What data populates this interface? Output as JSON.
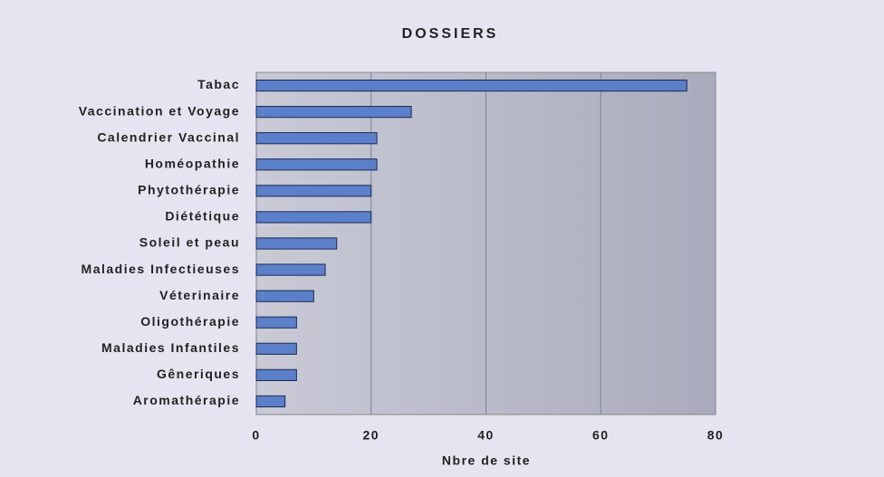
{
  "chart_data": {
    "type": "bar",
    "orientation": "horizontal",
    "title": "DOSSIERS",
    "x_label": "Nbre de site",
    "categories": [
      "Tabac",
      "Vaccination et Voyage",
      "Calendrier Vaccinal",
      "Homéopathie",
      "Phytothérapie",
      "Diététique",
      "Soleil et peau",
      "Maladies Infectieuses",
      "Véterinaire",
      "Oligothérapie",
      "Maladies Infantiles",
      "Gêneriques",
      "Aromathérapie"
    ],
    "values": [
      75,
      27,
      21,
      21,
      20,
      20,
      14,
      12,
      10,
      7,
      7,
      7,
      5
    ],
    "color": "#5b7fc8",
    "xlim": [
      0,
      80
    ],
    "xticks": [
      0,
      20,
      40,
      60,
      80
    ],
    "grid": true
  }
}
